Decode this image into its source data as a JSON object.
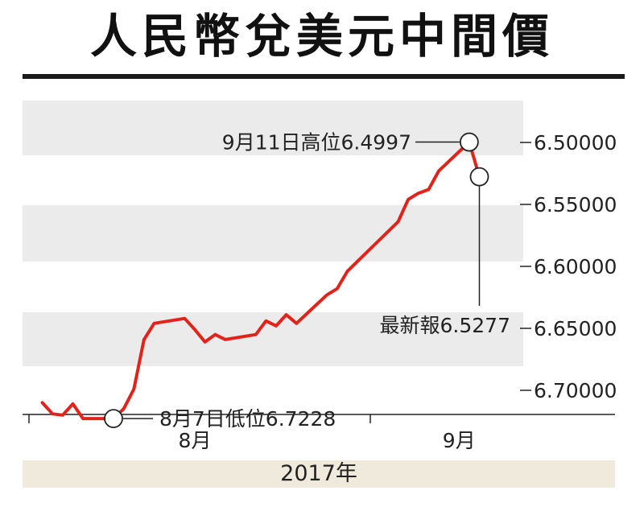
{
  "title": "人民幣兌美元中間價",
  "chart_data": {
    "type": "line",
    "series": [
      {
        "color": "#e2231a",
        "values": [
          {
            "x": "2017-07-31",
            "y": 6.71
          },
          {
            "x": "2017-08-01",
            "y": 6.719
          },
          {
            "x": "2017-08-02",
            "y": 6.72
          },
          {
            "x": "2017-08-03",
            "y": 6.711
          },
          {
            "x": "2017-08-04",
            "y": 6.7228
          },
          {
            "x": "2017-08-07",
            "y": 6.7228
          },
          {
            "x": "2017-08-08",
            "y": 6.715
          },
          {
            "x": "2017-08-09",
            "y": 6.699
          },
          {
            "x": "2017-08-10",
            "y": 6.659
          },
          {
            "x": "2017-08-11",
            "y": 6.646
          },
          {
            "x": "2017-08-14",
            "y": 6.642
          },
          {
            "x": "2017-08-15",
            "y": 6.651
          },
          {
            "x": "2017-08-16",
            "y": 6.661
          },
          {
            "x": "2017-08-17",
            "y": 6.655
          },
          {
            "x": "2017-08-18",
            "y": 6.659
          },
          {
            "x": "2017-08-21",
            "y": 6.655
          },
          {
            "x": "2017-08-22",
            "y": 6.644
          },
          {
            "x": "2017-08-23",
            "y": 6.648
          },
          {
            "x": "2017-08-24",
            "y": 6.639
          },
          {
            "x": "2017-08-25",
            "y": 6.646
          },
          {
            "x": "2017-08-28",
            "y": 6.623
          },
          {
            "x": "2017-08-29",
            "y": 6.618
          },
          {
            "x": "2017-08-30",
            "y": 6.604
          },
          {
            "x": "2017-08-31",
            "y": 6.596
          },
          {
            "x": "2017-09-01",
            "y": 6.588
          },
          {
            "x": "2017-09-04",
            "y": 6.564
          },
          {
            "x": "2017-09-05",
            "y": 6.546
          },
          {
            "x": "2017-09-06",
            "y": 6.541
          },
          {
            "x": "2017-09-07",
            "y": 6.538
          },
          {
            "x": "2017-09-08",
            "y": 6.523
          },
          {
            "x": "2017-09-11",
            "y": 6.4997
          },
          {
            "x": "2017-09-12",
            "y": 6.5277
          }
        ]
      }
    ],
    "y_axis": {
      "reversed": true,
      "ylim": [
        6.48,
        6.72
      ],
      "ticks": [
        6.5,
        6.55,
        6.6,
        6.65,
        6.7
      ],
      "tick_labels": [
        "6.50000",
        "6.55000",
        "6.60000",
        "6.65000",
        "6.70000"
      ],
      "position": "right"
    },
    "x_axis": {
      "xlim": [
        "2017-07-30",
        "2017-09-16"
      ],
      "tick_dates": [
        "2017-08-01",
        "2017-09-01"
      ],
      "month_label_dates": [
        "2017-08-15",
        "2017-09-10"
      ],
      "month_labels": [
        "8月",
        "9月"
      ],
      "year_label": "2017年"
    },
    "band_color": "#ebebeb",
    "grid": false,
    "annotations": [
      {
        "id": "low",
        "x": "2017-08-07",
        "y": 6.7228,
        "text": "8月7日低位6.7228"
      },
      {
        "id": "high",
        "x": "2017-09-11",
        "y": 6.4997,
        "text": "9月11日高位6.4997"
      },
      {
        "id": "latest",
        "x": "2017-09-12",
        "y": 6.5277,
        "text": "最新報6.5277"
      }
    ]
  }
}
